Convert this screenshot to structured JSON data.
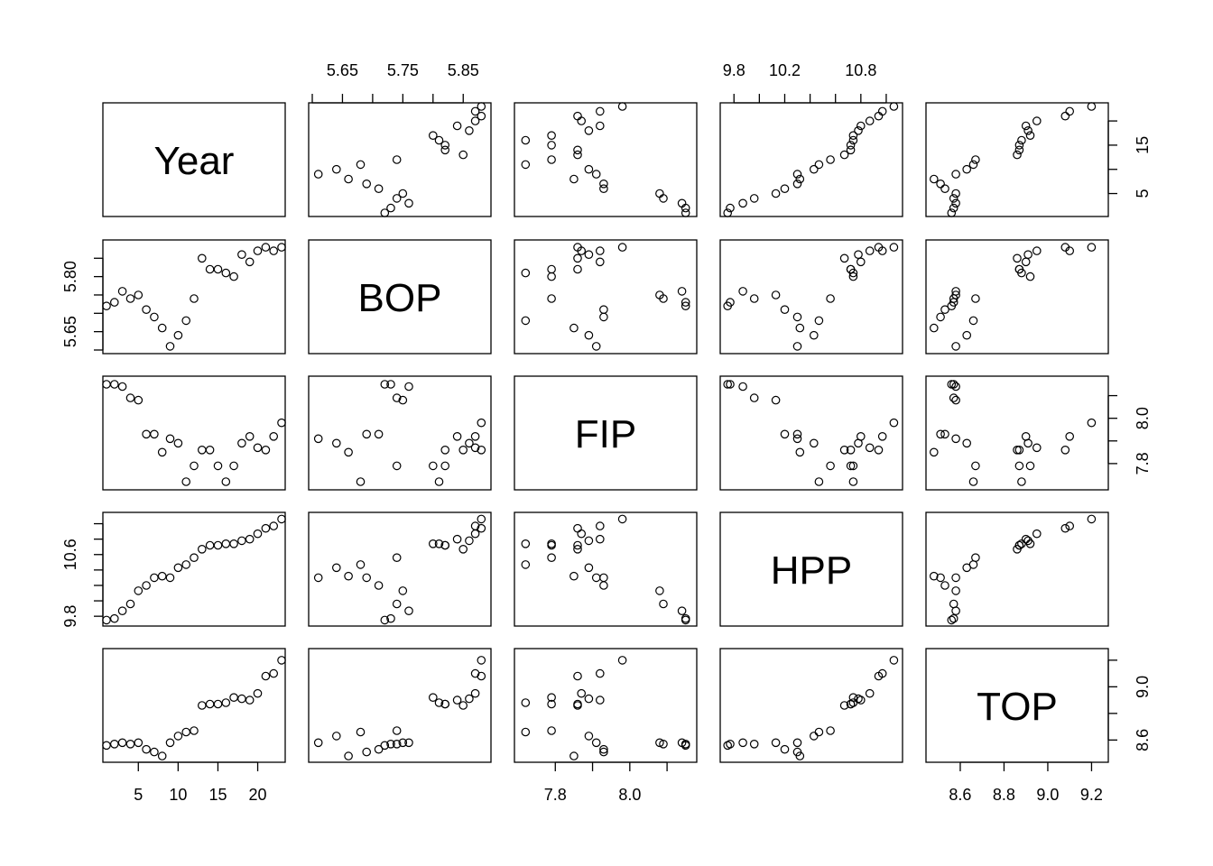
{
  "chart_data": {
    "type": "scatter",
    "subtype": "scatterplot-matrix",
    "title": "",
    "variables": [
      "Year",
      "BOP",
      "FIP",
      "HPP",
      "TOP"
    ],
    "ranges": {
      "Year": [
        1,
        23
      ],
      "BOP": [
        5.6,
        5.89
      ],
      "FIP": [
        7.7,
        8.17
      ],
      "HPP": [
        9.72,
        11.1
      ],
      "TOP": [
        8.46,
        9.26
      ]
    },
    "axis_ticks": {
      "Year": [
        5,
        10,
        15,
        20
      ],
      "BOP": [
        5.6,
        5.65,
        5.7,
        5.75,
        5.8,
        5.85
      ],
      "FIP": [
        7.8,
        7.9,
        8.0,
        8.1
      ],
      "HPP": [
        9.8,
        10.0,
        10.2,
        10.4,
        10.6,
        10.8,
        11.0
      ],
      "TOP": [
        8.6,
        8.8,
        9.0,
        9.2
      ]
    },
    "tick_labels": {
      "top": [
        {
          "var": "BOP",
          "labels": [
            "5.65",
            "5.75",
            "5.85"
          ]
        },
        {
          "var": "HPP",
          "labels": [
            "9.8",
            "10.2",
            "10.8"
          ]
        }
      ],
      "right": [
        {
          "var": "Year",
          "labels": [
            "5",
            "15"
          ]
        },
        {
          "var": "FIP",
          "labels": [
            "7.8",
            "8.0"
          ]
        },
        {
          "var": "TOP",
          "labels": [
            "8.6",
            "9.0"
          ]
        }
      ],
      "left": [
        {
          "var": "BOP",
          "labels": [
            "5.65",
            "5.80"
          ]
        },
        {
          "var": "HPP",
          "labels": [
            "9.8",
            "10.6"
          ]
        }
      ],
      "bottom": [
        {
          "var": "Year",
          "labels": [
            "5",
            "10",
            "15",
            "20"
          ]
        },
        {
          "var": "FIP",
          "labels": [
            "7.8",
            "8.0"
          ]
        },
        {
          "var": "TOP",
          "labels": [
            "8.6",
            "8.8",
            "9.0",
            "9.2"
          ]
        }
      ]
    },
    "data": {
      "Year": [
        1,
        2,
        3,
        4,
        5,
        6,
        7,
        8,
        9,
        10,
        11,
        12,
        13,
        14,
        15,
        16,
        17,
        18,
        19,
        20,
        21,
        22,
        23
      ],
      "BOP": [
        5.72,
        5.73,
        5.76,
        5.74,
        5.75,
        5.71,
        5.69,
        5.66,
        5.61,
        5.64,
        5.68,
        5.74,
        5.85,
        5.82,
        5.82,
        5.81,
        5.8,
        5.86,
        5.84,
        5.87,
        5.88,
        5.87,
        5.88
      ],
      "FIP": [
        8.15,
        8.15,
        8.14,
        8.09,
        8.08,
        7.93,
        7.93,
        7.85,
        7.91,
        7.89,
        7.72,
        7.79,
        7.86,
        7.86,
        7.79,
        7.72,
        7.79,
        7.89,
        7.92,
        7.87,
        7.86,
        7.92,
        7.98
      ],
      "HPP": [
        9.75,
        9.77,
        9.87,
        9.96,
        10.13,
        10.2,
        10.3,
        10.32,
        10.3,
        10.43,
        10.47,
        10.56,
        10.67,
        10.72,
        10.72,
        10.74,
        10.74,
        10.78,
        10.8,
        10.87,
        10.94,
        10.97,
        11.06
      ],
      "TOP": [
        8.56,
        8.57,
        8.58,
        8.57,
        8.58,
        8.53,
        8.51,
        8.48,
        8.58,
        8.63,
        8.66,
        8.67,
        8.86,
        8.87,
        8.87,
        8.88,
        8.92,
        8.91,
        8.9,
        8.95,
        9.08,
        9.1,
        9.2
      ]
    }
  }
}
